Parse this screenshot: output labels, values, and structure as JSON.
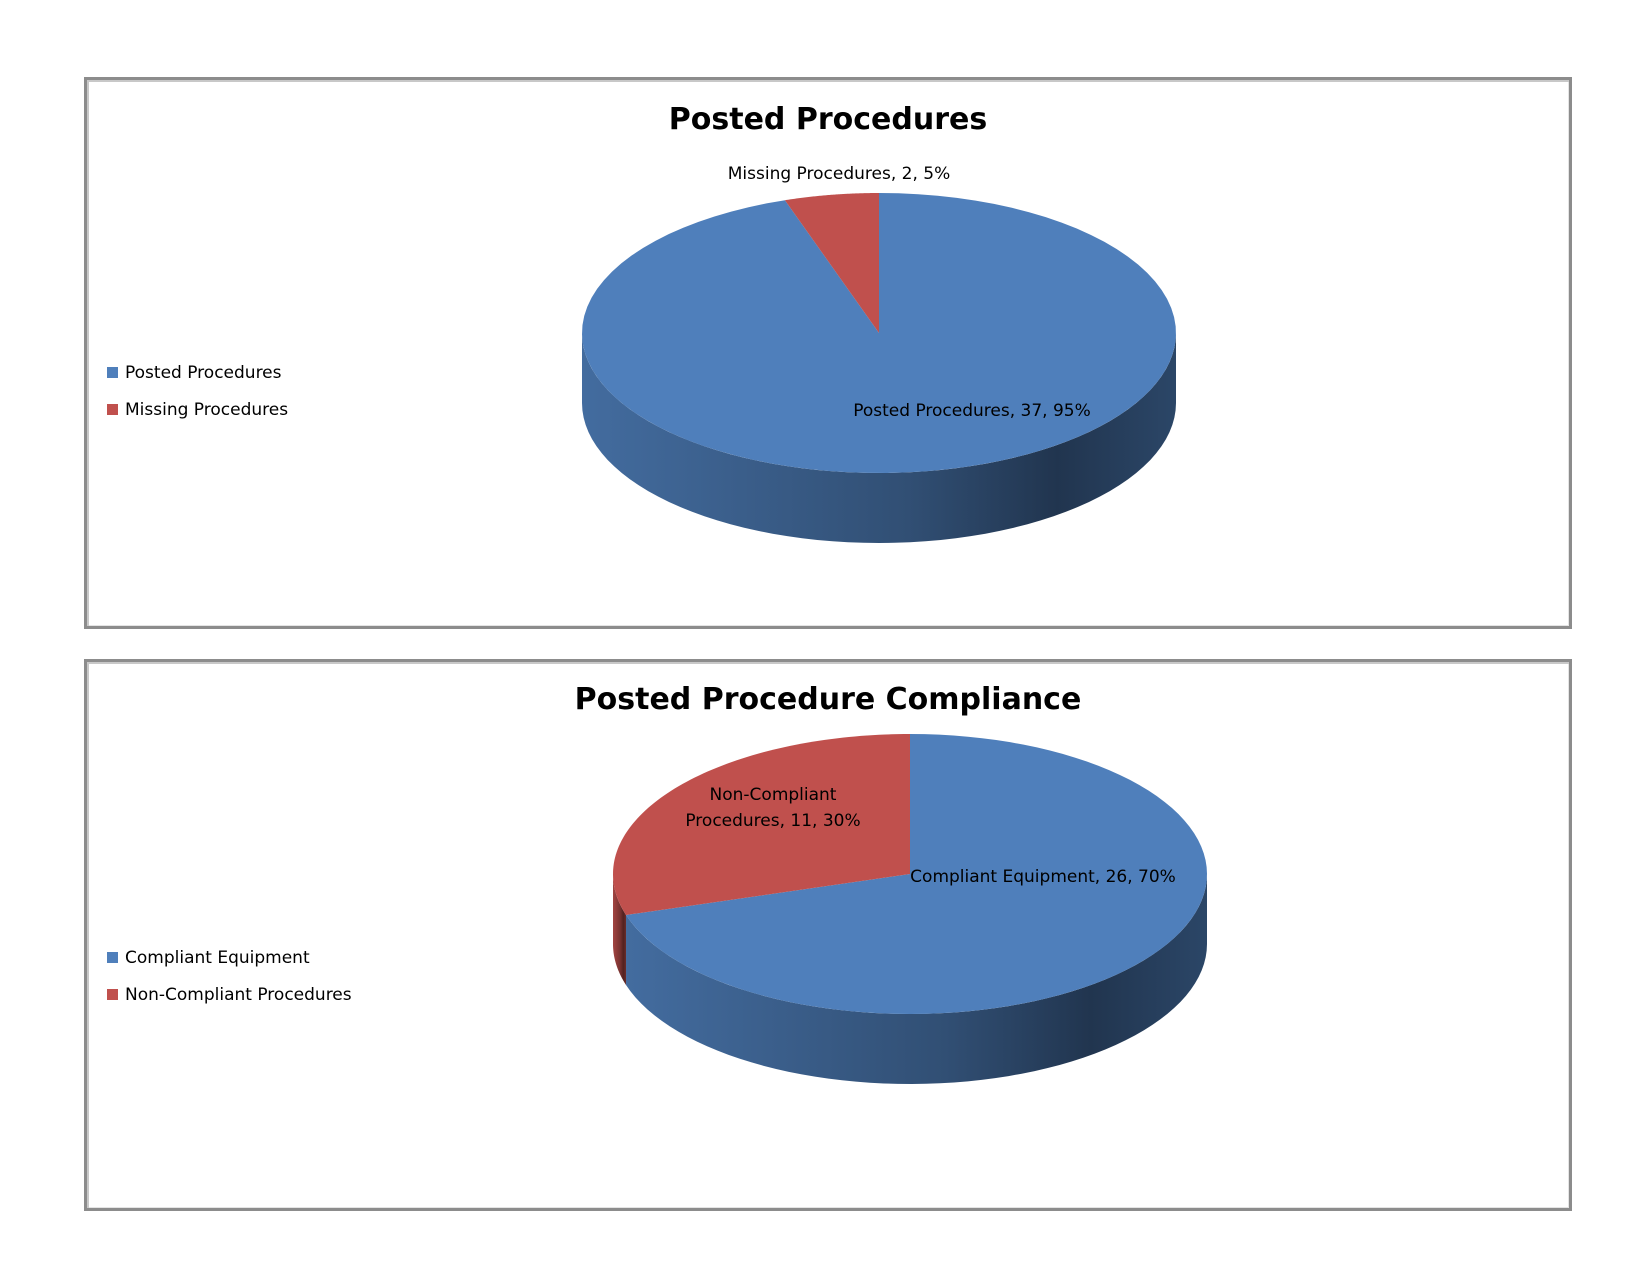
{
  "colors": {
    "blue": "#4f7fbb",
    "red": "#c0504d"
  },
  "chart_data": [
    {
      "type": "pie",
      "title": "Posted Procedures",
      "legend_position": "left",
      "categories": [
        "Posted Procedures",
        "Missing Procedures"
      ],
      "values": [
        37,
        2
      ],
      "percents": [
        "95%",
        "5%"
      ],
      "data_labels": [
        "Posted Procedures, 37, 95%",
        "Missing Procedures, 2, 5%"
      ]
    },
    {
      "type": "pie",
      "title": "Posted Procedure Compliance",
      "legend_position": "left",
      "categories": [
        "Compliant Equipment",
        "Non-Compliant Procedures"
      ],
      "values": [
        26,
        11
      ],
      "percents": [
        "70%",
        "30%"
      ],
      "data_labels": [
        "Compliant Equipment, 26, 70%",
        "Non-Compliant Procedures, 11, 30%"
      ],
      "data_label_lines": [
        [
          "Compliant Equipment, 26, 70%"
        ],
        [
          "Non-Compliant",
          "Procedures, 11, 30%"
        ]
      ]
    }
  ]
}
